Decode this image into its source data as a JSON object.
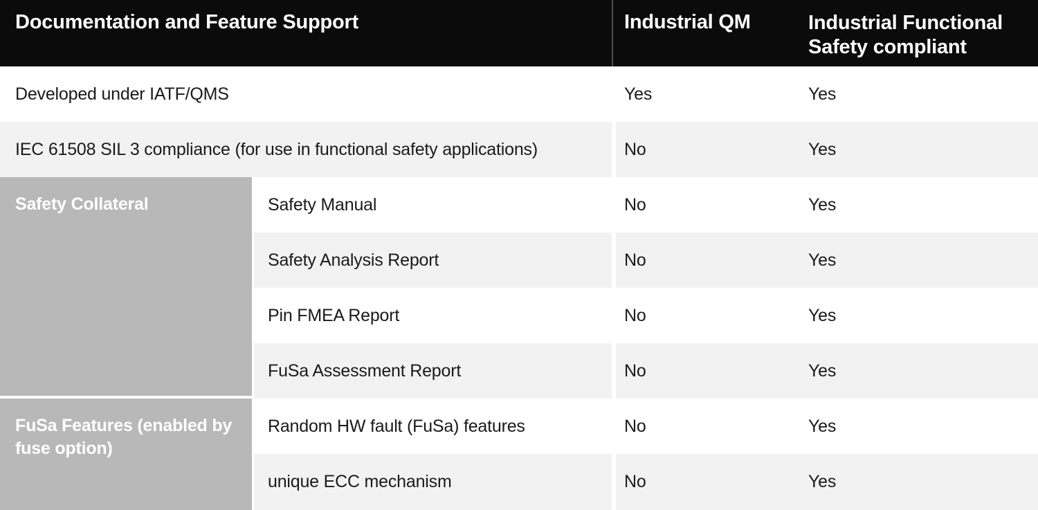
{
  "header": {
    "col1": "Documentation and Feature Support",
    "col2": "Industrial QM",
    "col3": "Industrial Functional Safety compliant"
  },
  "rows": [
    {
      "label": "Developed under IATF/QMS",
      "qm": "Yes",
      "fusa": "Yes"
    },
    {
      "label": "IEC 61508 SIL 3 compliance (for use in functional safety applications)",
      "qm": "No",
      "fusa": "Yes"
    }
  ],
  "groups": [
    {
      "label": "Safety Collateral",
      "rows": [
        {
          "label": "Safety Manual",
          "qm": "No",
          "fusa": "Yes"
        },
        {
          "label": "Safety Analysis Report",
          "qm": "No",
          "fusa": "Yes"
        },
        {
          "label": "Pin FMEA Report",
          "qm": "No",
          "fusa": "Yes"
        },
        {
          "label": "FuSa Assessment Report",
          "qm": "No",
          "fusa": "Yes"
        }
      ]
    },
    {
      "label": "FuSa Features (enabled by fuse option)",
      "rows": [
        {
          "label": "Random HW fault (FuSa) features",
          "qm": "No",
          "fusa": "Yes"
        },
        {
          "label": "unique ECC mechanism",
          "qm": "No",
          "fusa": "Yes"
        }
      ]
    }
  ],
  "colors": {
    "header_bg": "#0b0b0b",
    "header_text": "#ffffff",
    "alt_row_bg": "#f2f2f2",
    "group_cell_bg": "#b8b8b8",
    "group_cell_text": "#ffffff",
    "body_text": "#1a1a1a",
    "header_divider": "#4f4f4f"
  }
}
